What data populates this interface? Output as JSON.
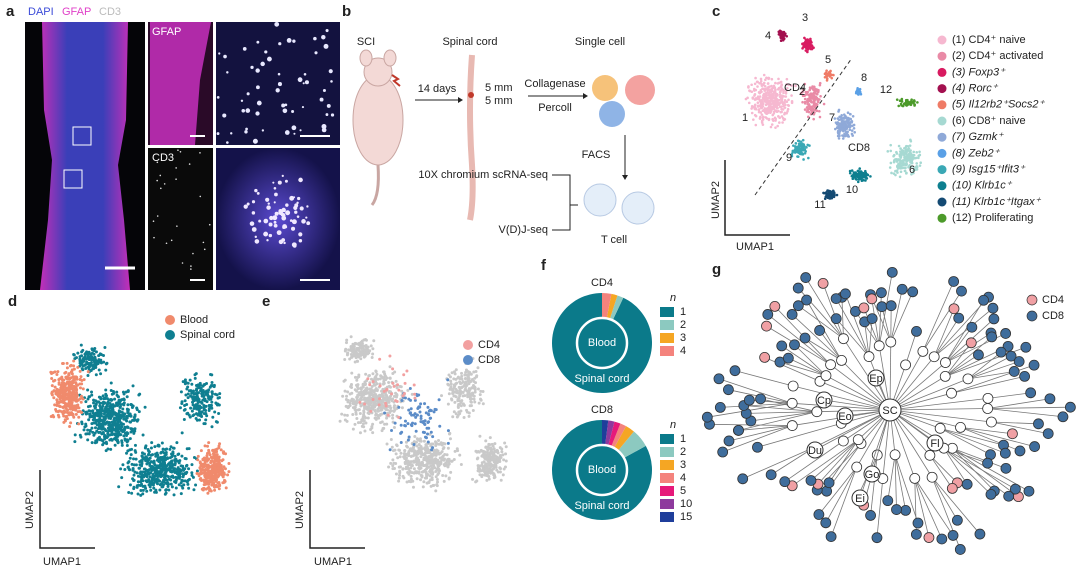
{
  "panel_labels": [
    "a",
    "b",
    "c",
    "d",
    "e",
    "f",
    "g"
  ],
  "a": {
    "channels": [
      {
        "name": "DAPI",
        "color": "#3b4bd8"
      },
      {
        "name": "GFAP",
        "color": "#e040c8"
      },
      {
        "name": "CD3",
        "color": "#bbbbbb"
      }
    ],
    "insets": [
      "GFAP",
      "CD3"
    ]
  },
  "b": {
    "steps": [
      "SCI",
      "Spinal cord",
      "Single cell"
    ],
    "duration": "14 days",
    "lengths": [
      "5 mm",
      "5 mm"
    ],
    "digestion": [
      "Collagenase",
      "Percoll"
    ],
    "sorting": "FACS",
    "sequencing": [
      "10X chromium scRNA-seq",
      "V(D)J-seq"
    ],
    "cell": "T cell"
  },
  "c": {
    "cluster_numbers": [
      "1",
      "2",
      "3",
      "4",
      "5",
      "6",
      "7",
      "8",
      "9",
      "10",
      "11",
      "12"
    ],
    "group_labels": [
      "CD4",
      "CD8"
    ],
    "axes": [
      "UMAP2",
      "UMAP1"
    ],
    "legend": [
      {
        "label": "(1) CD4⁺ naive",
        "color": "#f6b8d0"
      },
      {
        "label": "(2) CD4⁺ activated",
        "color": "#e98aa6"
      },
      {
        "label": "(3) Foxp3⁺",
        "color": "#d81b60"
      },
      {
        "label": "(4) Rorc⁺",
        "color": "#a3104f"
      },
      {
        "label": "(5) Il12rb2⁺Socs2⁺",
        "color": "#ef7b66"
      },
      {
        "label": "(6) CD8⁺ naive",
        "color": "#a6d9d2"
      },
      {
        "label": "(7) Gzmk⁺",
        "color": "#8fa9d8"
      },
      {
        "label": "(8) Zeb2⁺",
        "color": "#5aa0e6"
      },
      {
        "label": "(9) Isg15⁺Ifit3⁺",
        "color": "#3aa8b5"
      },
      {
        "label": "(10) Klrb1c⁺",
        "color": "#0d7f8f"
      },
      {
        "label": "(11) Klrb1c⁺Itgax⁺",
        "color": "#144a73"
      },
      {
        "label": "(12) Proliferating",
        "color": "#4c9a2a"
      }
    ]
  },
  "d": {
    "legend": [
      {
        "label": "Blood",
        "color": "#f08a6c"
      },
      {
        "label": "Spinal cord",
        "color": "#0f7f91"
      }
    ],
    "axes": [
      "UMAP2",
      "UMAP1"
    ]
  },
  "e": {
    "legend": [
      {
        "label": "CD4",
        "color": "#f2a0a0"
      },
      {
        "label": "CD8",
        "color": "#5b8cc8"
      }
    ],
    "axes": [
      "UMAP2",
      "UMAP1"
    ]
  },
  "g": {
    "legend": [
      {
        "label": "CD4",
        "color": "#f0a0a4"
      },
      {
        "label": "CD8",
        "color": "#3f6d9c"
      }
    ],
    "node_labels": [
      "SC",
      "Ep",
      "Cp",
      "Eo",
      "Fl",
      "Du",
      "Go",
      "Ei"
    ]
  },
  "chart_data": [
    {
      "type": "pie",
      "title": "CD4",
      "legend_title": "n",
      "center_label": "Blood",
      "outer_label": "Spinal cord",
      "categories": [
        "1",
        "2",
        "3",
        "4"
      ],
      "values": [
        93,
        2,
        2,
        3
      ],
      "colors": [
        "#0b7a8a",
        "#8cc9c0",
        "#f5a623",
        "#f4837d"
      ]
    },
    {
      "type": "pie",
      "title": "CD8",
      "legend_title": "n",
      "center_label": "Blood",
      "outer_label": "Spinal cord",
      "categories": [
        "1",
        "2",
        "3",
        "4",
        "5",
        "10",
        "15"
      ],
      "values": [
        83,
        6,
        3,
        2,
        2,
        2,
        2
      ],
      "colors": [
        "#0b7a8a",
        "#8cc9c0",
        "#f5a623",
        "#f4837d",
        "#e6197a",
        "#8e3a9d",
        "#1f3e9b"
      ]
    }
  ]
}
